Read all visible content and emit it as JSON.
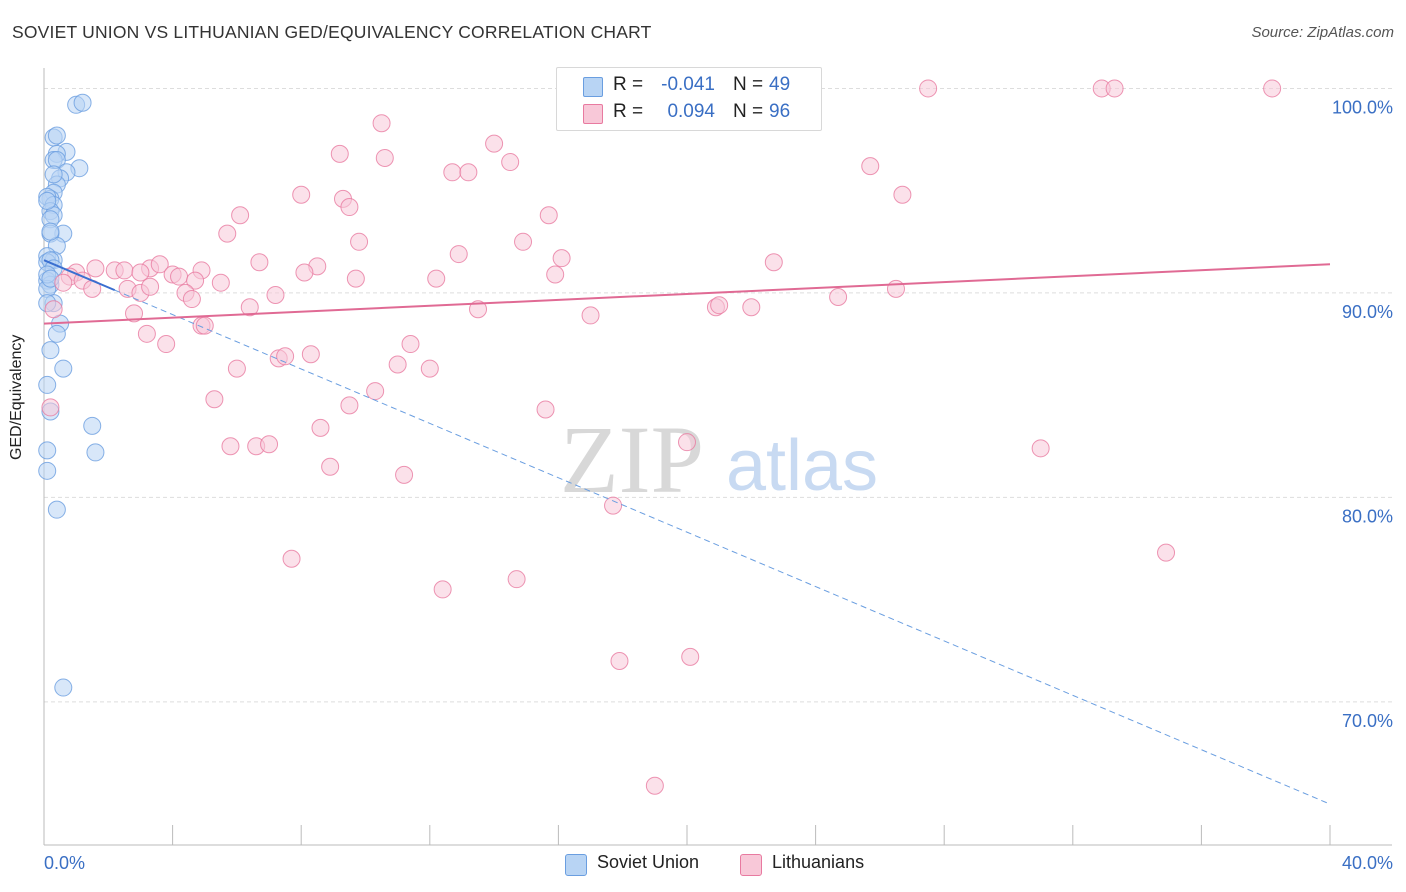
{
  "header": {
    "title": "SOVIET UNION VS LITHUANIAN GED/EQUIVALENCY CORRELATION CHART",
    "source": "Source: ZipAtlas.com"
  },
  "watermark": {
    "zip": "ZIP",
    "atlas": "atlas"
  },
  "legend": {
    "r_label": "R =",
    "n_label": "N =",
    "rows": [
      {
        "series": "Soviet Union",
        "r": "-0.041",
        "n": "49",
        "color": "#a8c8f0"
      },
      {
        "series": "Lithuanians",
        "r": "0.094",
        "n": "96",
        "color": "#f6b8cc"
      }
    ]
  },
  "chart_data": {
    "type": "scatter",
    "title": "SOVIET UNION VS LITHUANIAN GED/EQUIVALENCY CORRELATION CHART",
    "xlabel": "",
    "ylabel": "GED/Equivalency",
    "xlim": [
      0,
      40
    ],
    "ylim": [
      63,
      101
    ],
    "x_tick_labels": [
      "0.0%",
      "40.0%"
    ],
    "y_ticks": [
      70,
      80,
      90,
      100
    ],
    "y_tick_labels": [
      "70.0%",
      "80.0%",
      "90.0%",
      "100.0%"
    ],
    "grid": "horizontal dashed",
    "legend_position": "top-center and bottom",
    "series": [
      {
        "name": "Soviet Union",
        "color": "#6a9ee0",
        "fill": "#b8d4f4",
        "trend": {
          "x0": 0,
          "y0": 91.6,
          "x1": 40,
          "y1": 65.0,
          "solid_until": 2.2
        },
        "points": [
          [
            1.0,
            99.2
          ],
          [
            1.2,
            99.3
          ],
          [
            0.3,
            97.6
          ],
          [
            0.4,
            97.7
          ],
          [
            0.7,
            96.9
          ],
          [
            0.4,
            96.8
          ],
          [
            0.3,
            96.5
          ],
          [
            0.4,
            96.5
          ],
          [
            1.1,
            96.1
          ],
          [
            0.7,
            95.9
          ],
          [
            0.5,
            95.6
          ],
          [
            0.4,
            95.3
          ],
          [
            0.3,
            94.9
          ],
          [
            0.2,
            94.6
          ],
          [
            0.1,
            94.7
          ],
          [
            0.3,
            94.3
          ],
          [
            0.2,
            94.0
          ],
          [
            0.3,
            93.8
          ],
          [
            0.2,
            93.6
          ],
          [
            0.6,
            92.9
          ],
          [
            0.2,
            92.9
          ],
          [
            0.4,
            92.3
          ],
          [
            0.1,
            91.8
          ],
          [
            0.3,
            91.6
          ],
          [
            0.1,
            91.5
          ],
          [
            0.2,
            91.6
          ],
          [
            0.3,
            91.2
          ],
          [
            0.1,
            90.6
          ],
          [
            0.2,
            90.4
          ],
          [
            0.1,
            90.2
          ],
          [
            0.3,
            89.5
          ],
          [
            0.1,
            89.5
          ],
          [
            0.5,
            88.5
          ],
          [
            0.4,
            88.0
          ],
          [
            0.2,
            87.2
          ],
          [
            0.6,
            86.3
          ],
          [
            0.1,
            85.5
          ],
          [
            0.2,
            84.2
          ],
          [
            1.5,
            83.5
          ],
          [
            1.6,
            82.2
          ],
          [
            0.1,
            82.3
          ],
          [
            0.1,
            81.3
          ],
          [
            0.4,
            79.4
          ],
          [
            0.6,
            70.7
          ],
          [
            0.1,
            90.9
          ],
          [
            0.2,
            90.7
          ],
          [
            0.1,
            94.5
          ],
          [
            0.3,
            95.8
          ],
          [
            0.2,
            93.0
          ]
        ]
      },
      {
        "name": "Lithuanians",
        "color": "#e87aa0",
        "fill": "#f8c8d8",
        "trend": {
          "x0": 0,
          "y0": 88.5,
          "x1": 40,
          "y1": 91.4
        },
        "points": [
          [
            22.6,
            100.0
          ],
          [
            23.7,
            100.0
          ],
          [
            27.5,
            100.0
          ],
          [
            32.9,
            100.0
          ],
          [
            33.3,
            100.0
          ],
          [
            38.2,
            100.0
          ],
          [
            10.5,
            98.3
          ],
          [
            14.0,
            97.3
          ],
          [
            9.2,
            96.8
          ],
          [
            10.6,
            96.6
          ],
          [
            14.5,
            96.4
          ],
          [
            25.7,
            96.2
          ],
          [
            12.7,
            95.9
          ],
          [
            13.2,
            95.9
          ],
          [
            8.0,
            94.8
          ],
          [
            9.3,
            94.6
          ],
          [
            9.5,
            94.2
          ],
          [
            26.7,
            94.8
          ],
          [
            6.1,
            93.8
          ],
          [
            15.7,
            93.8
          ],
          [
            5.7,
            92.9
          ],
          [
            9.8,
            92.5
          ],
          [
            14.9,
            92.5
          ],
          [
            12.9,
            91.9
          ],
          [
            16.1,
            91.7
          ],
          [
            22.7,
            91.5
          ],
          [
            6.7,
            91.5
          ],
          [
            8.5,
            91.3
          ],
          [
            8.1,
            91.0
          ],
          [
            1.6,
            91.2
          ],
          [
            2.2,
            91.1
          ],
          [
            2.5,
            91.1
          ],
          [
            3.3,
            91.2
          ],
          [
            3.6,
            91.4
          ],
          [
            3.0,
            91.0
          ],
          [
            4.0,
            90.9
          ],
          [
            4.9,
            91.1
          ],
          [
            4.2,
            90.8
          ],
          [
            1.0,
            91.0
          ],
          [
            0.8,
            90.8
          ],
          [
            1.2,
            90.6
          ],
          [
            0.6,
            90.5
          ],
          [
            4.7,
            90.6
          ],
          [
            5.5,
            90.5
          ],
          [
            9.7,
            90.7
          ],
          [
            12.2,
            90.7
          ],
          [
            15.9,
            90.9
          ],
          [
            1.5,
            90.2
          ],
          [
            2.6,
            90.2
          ],
          [
            3.0,
            90.0
          ],
          [
            3.3,
            90.3
          ],
          [
            4.4,
            90.0
          ],
          [
            4.6,
            89.7
          ],
          [
            7.2,
            89.9
          ],
          [
            26.5,
            90.2
          ],
          [
            24.7,
            89.8
          ],
          [
            6.4,
            89.3
          ],
          [
            20.9,
            89.3
          ],
          [
            22.0,
            89.3
          ],
          [
            2.8,
            89.0
          ],
          [
            0.3,
            89.2
          ],
          [
            4.9,
            88.4
          ],
          [
            5.0,
            88.4
          ],
          [
            3.2,
            88.0
          ],
          [
            3.8,
            87.5
          ],
          [
            11.4,
            87.5
          ],
          [
            8.3,
            87.0
          ],
          [
            7.3,
            86.8
          ],
          [
            7.5,
            86.9
          ],
          [
            11.0,
            86.5
          ],
          [
            12.0,
            86.3
          ],
          [
            6.0,
            86.3
          ],
          [
            10.3,
            85.2
          ],
          [
            5.3,
            84.8
          ],
          [
            9.5,
            84.5
          ],
          [
            15.6,
            84.3
          ],
          [
            0.2,
            84.4
          ],
          [
            8.6,
            83.4
          ],
          [
            20.0,
            82.7
          ],
          [
            31.0,
            82.4
          ],
          [
            5.8,
            82.5
          ],
          [
            6.6,
            82.5
          ],
          [
            7.0,
            82.6
          ],
          [
            8.9,
            81.5
          ],
          [
            11.2,
            81.1
          ],
          [
            17.7,
            79.6
          ],
          [
            7.7,
            77.0
          ],
          [
            34.9,
            77.3
          ],
          [
            12.4,
            75.5
          ],
          [
            14.7,
            76.0
          ],
          [
            17.9,
            72.0
          ],
          [
            20.1,
            72.2
          ],
          [
            19.0,
            65.9
          ],
          [
            21.0,
            89.4
          ],
          [
            17.0,
            88.9
          ],
          [
            13.5,
            89.2
          ]
        ]
      }
    ]
  },
  "bottom_legend": {
    "items": [
      {
        "label": "Soviet Union",
        "color": "#b8d4f4",
        "border": "#6a9ee0"
      },
      {
        "label": "Lithuanians",
        "color": "#f8c8d8",
        "border": "#e87aa0"
      }
    ]
  }
}
